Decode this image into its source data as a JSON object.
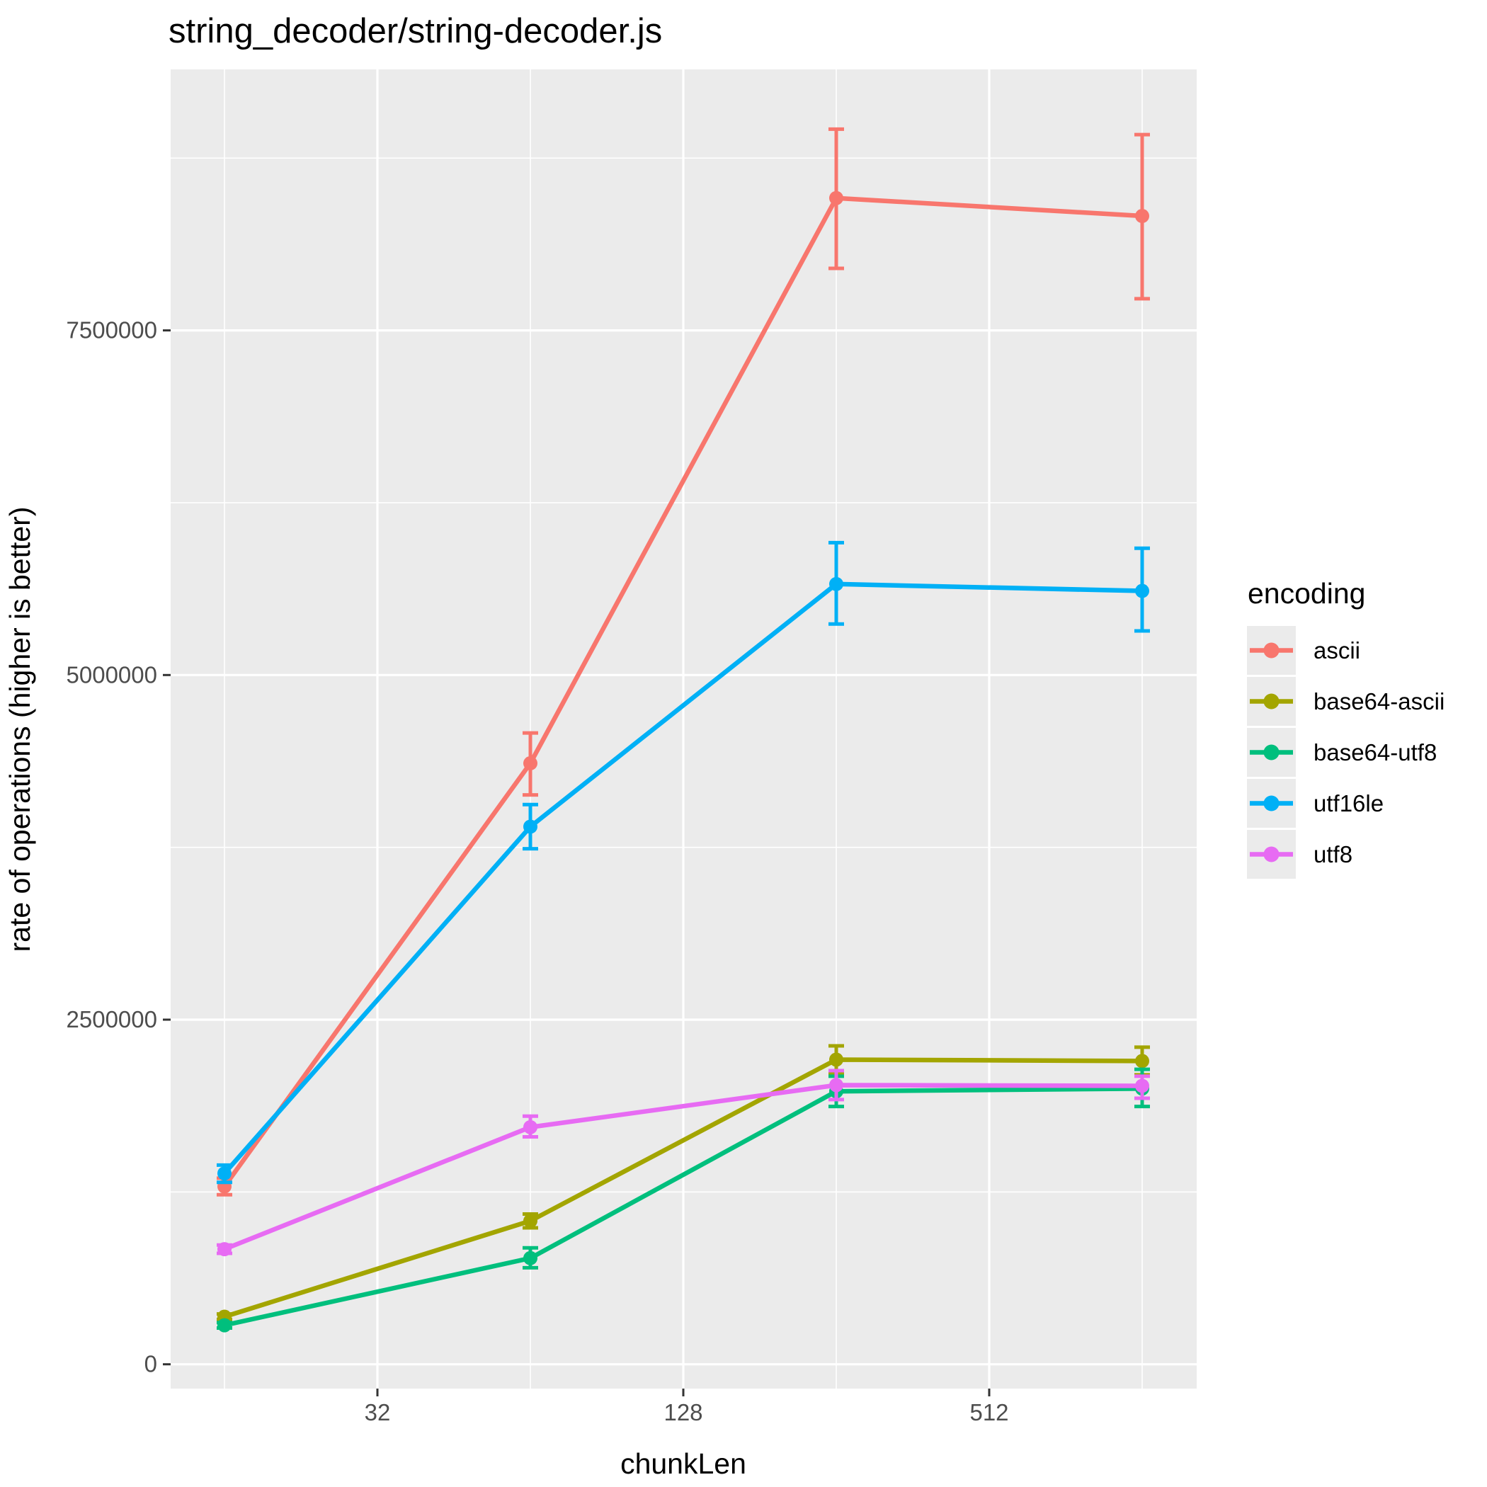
{
  "title": "string_decoder/string-decoder.js",
  "axes": {
    "x_label": "chunkLen",
    "y_label": "rate of operations (higher is better)"
  },
  "legend": {
    "title": "encoding",
    "entries": [
      "ascii",
      "base64-ascii",
      "base64-utf8",
      "utf16le",
      "utf8"
    ]
  },
  "theme": {
    "panel_bg": "#EBEBEB",
    "grid_color": "#FFFFFF",
    "tick_color": "#333333",
    "tick_text_color": "#4D4D4D",
    "text_color": "#000000",
    "page_bg": "#FFFFFF"
  },
  "chart_data": {
    "type": "line",
    "title": "string_decoder/string-decoder.js",
    "xlabel": "chunkLen",
    "ylabel": "rate of operations (higher is better)",
    "x_scale": "log2",
    "x": [
      16,
      64,
      256,
      1024
    ],
    "x_ticks": [
      {
        "v": 32,
        "label": "32"
      },
      {
        "v": 128,
        "label": "128"
      },
      {
        "v": 512,
        "label": "512"
      }
    ],
    "x_minor": [
      16,
      64,
      256,
      1024
    ],
    "y_ticks": [
      {
        "v": 0,
        "label": "0"
      },
      {
        "v": 2500000,
        "label": "2500000"
      },
      {
        "v": 5000000,
        "label": "5000000"
      },
      {
        "v": 7500000,
        "label": "7500000"
      }
    ],
    "y_minor": [
      1250000,
      3750000,
      6250000,
      8750000
    ],
    "ylim": [
      -175000,
      9400000
    ],
    "grid": "white major+minor on gray panel",
    "legend_position": "right",
    "legend_title": "encoding",
    "error_bars": true,
    "series": [
      {
        "name": "ascii",
        "color": "#F8766D",
        "values": [
          1290000,
          4360000,
          8460000,
          8330000
        ],
        "ymin": [
          1230000,
          4130000,
          7950000,
          7730000
        ],
        "ymax": [
          1350000,
          4580000,
          8960000,
          8920000
        ]
      },
      {
        "name": "base64-ascii",
        "color": "#A3A500",
        "values": [
          345000,
          1040000,
          2210000,
          2200000
        ],
        "ymin": [
          325000,
          990000,
          2110000,
          2100000
        ],
        "ymax": [
          365000,
          1090000,
          2310000,
          2300000
        ]
      },
      {
        "name": "base64-utf8",
        "color": "#00BF7D",
        "values": [
          283000,
          770000,
          1980000,
          2000000
        ],
        "ymin": [
          263000,
          700000,
          1870000,
          1870000
        ],
        "ymax": [
          303000,
          845000,
          2090000,
          2140000
        ]
      },
      {
        "name": "utf16le",
        "color": "#00B0F6",
        "values": [
          1385000,
          3900000,
          5660000,
          5610000
        ],
        "ymin": [
          1320000,
          3740000,
          5370000,
          5320000
        ],
        "ymax": [
          1445000,
          4060000,
          5960000,
          5920000
        ]
      },
      {
        "name": "utf8",
        "color": "#E76BF3",
        "values": [
          835000,
          1720000,
          2025000,
          2020000
        ],
        "ymin": [
          805000,
          1650000,
          1920000,
          1930000
        ],
        "ymax": [
          865000,
          1800000,
          2130000,
          2090000
        ]
      }
    ]
  }
}
